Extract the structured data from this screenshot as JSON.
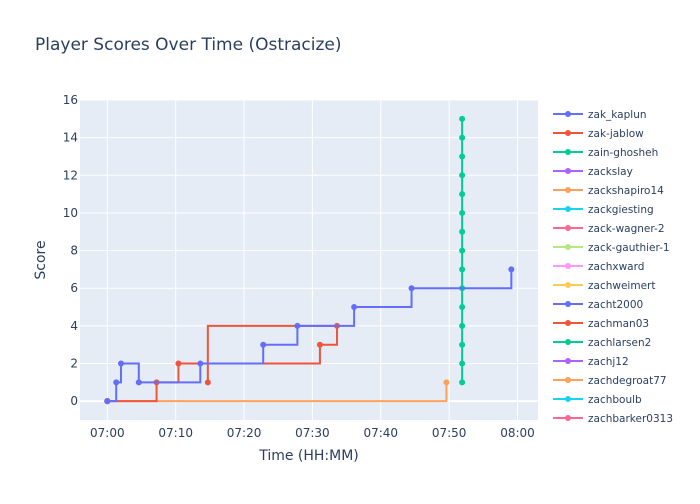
{
  "chart_data": {
    "type": "line",
    "line_shape": "step",
    "title": "Player Scores Over Time (Ostracize)",
    "xlabel": "Time (HH:MM)",
    "ylabel": "Score",
    "xlim": [
      "06:56",
      "08:03"
    ],
    "ylim": [
      -1,
      16
    ],
    "x_ticks": [
      "07:00",
      "07:10",
      "07:20",
      "07:30",
      "07:40",
      "07:50",
      "08:00"
    ],
    "y_ticks": [
      0,
      2,
      4,
      6,
      8,
      10,
      12,
      14,
      16
    ],
    "grid": true,
    "legend_position": "right",
    "series": [
      {
        "name": "zak_kaplun",
        "color": "#636efa",
        "x": [
          "07:00",
          "07:01.3",
          "07:02",
          "07:04.6",
          "07:13.6",
          "07:22.8",
          "07:27.8",
          "07:36.1",
          "07:44.5",
          "07:59.1"
        ],
        "y": [
          0,
          1,
          2,
          1,
          2,
          3,
          4,
          5,
          6,
          7
        ]
      },
      {
        "name": "zak-jablow",
        "color": "#ef553b",
        "x": [
          "07:00",
          "07:07.2",
          "07:10.4",
          "07:31.1",
          "07:33.6",
          "07:14.7"
        ],
        "y": [
          0,
          1,
          2,
          3,
          4,
          1
        ]
      },
      {
        "name": "zain-ghosheh",
        "color": "#00cc96",
        "x": [
          "07:51.9",
          "07:51.9",
          "07:51.9",
          "07:51.9",
          "07:51.9",
          "07:51.9",
          "07:51.9",
          "07:51.9",
          "07:51.9",
          "07:51.9",
          "07:51.9",
          "07:51.9",
          "07:51.9",
          "07:51.9",
          "07:51.9"
        ],
        "y": [
          1,
          2,
          3,
          4,
          5,
          6,
          7,
          8,
          9,
          10,
          11,
          12,
          13,
          14,
          15
        ]
      },
      {
        "name": "zackslay",
        "color": "#ab63fa",
        "x": [
          "07:00"
        ],
        "y": [
          0
        ]
      },
      {
        "name": "zackshapiro14",
        "color": "#ffa15a",
        "x": [
          "07:00",
          "07:49.6"
        ],
        "y": [
          0,
          1
        ]
      },
      {
        "name": "zackgiesting",
        "color": "#19d3f3",
        "x": [
          "07:00"
        ],
        "y": [
          0
        ]
      },
      {
        "name": "zack-wagner-2",
        "color": "#ff6692",
        "x": [
          "07:00"
        ],
        "y": [
          0
        ]
      },
      {
        "name": "zack-gauthier-1",
        "color": "#b6e880",
        "x": [
          "07:00"
        ],
        "y": [
          0
        ]
      },
      {
        "name": "zachxward",
        "color": "#ff97ff",
        "x": [
          "07:00"
        ],
        "y": [
          0
        ]
      },
      {
        "name": "zachweimert",
        "color": "#fecb52",
        "x": [
          "07:00"
        ],
        "y": [
          0
        ]
      },
      {
        "name": "zacht2000",
        "color": "#636efa",
        "x": [
          "07:00"
        ],
        "y": [
          0
        ]
      },
      {
        "name": "zachman03",
        "color": "#ef553b",
        "x": [
          "07:00"
        ],
        "y": [
          0
        ]
      },
      {
        "name": "zachlarsen2",
        "color": "#00cc96",
        "x": [
          "07:00"
        ],
        "y": [
          0
        ]
      },
      {
        "name": "zachj12",
        "color": "#ab63fa",
        "x": [
          "07:00"
        ],
        "y": [
          0
        ]
      },
      {
        "name": "zachdegroat77",
        "color": "#ffa15a",
        "x": [
          "07:00"
        ],
        "y": [
          0
        ]
      },
      {
        "name": "zachboulb",
        "color": "#19d3f3",
        "x": [
          "07:00"
        ],
        "y": [
          0
        ]
      },
      {
        "name": "zachbarker0313",
        "color": "#ff6692",
        "x": [
          "07:00"
        ],
        "y": [
          0
        ]
      }
    ]
  }
}
